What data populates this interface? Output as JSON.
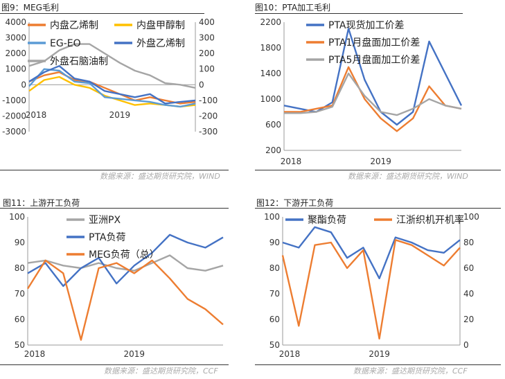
{
  "figures": [
    {
      "label": "图9：MEG毛利",
      "source": "数据来源：盛达期货研究院，WIND"
    },
    {
      "label": "图10：PTA加工毛利",
      "source": "数据来源：盛达期货研究院，WIND"
    },
    {
      "label": "图11：上游开工负荷",
      "source": "数据来源：盛达期货研究院，CCF"
    },
    {
      "label": "图12：下游开工负荷",
      "source": "数据来源：盛达期货研究院，CCF"
    }
  ],
  "chart_data": [
    {
      "type": "line",
      "title": "",
      "x": [
        "2018-01",
        "2018-03",
        "2018-05",
        "2018-07",
        "2018-09",
        "2018-11",
        "2019-01",
        "2019-03",
        "2019-05",
        "2019-07",
        "2019-09",
        "2019-11"
      ],
      "x_ticks": [
        "2018",
        "2019"
      ],
      "y_left": {
        "ticks": [
          -3000,
          -2000,
          -1000,
          0,
          1000,
          2000,
          3000,
          4000
        ],
        "lim": [
          -3000,
          4000
        ]
      },
      "y_right": {
        "ticks": [
          -300,
          -200,
          -100,
          0,
          100,
          200,
          300,
          400
        ],
        "lim": [
          -300,
          400
        ]
      },
      "legend": [
        "内盘乙烯制",
        "内盘甲醇制",
        "EG-EO",
        "外盘乙烯制",
        "外盘石脑油制"
      ],
      "colors": [
        "#ED7D31",
        "#FFC000",
        "#5B9BD5",
        "#4472C4",
        "#A5A5A5"
      ],
      "series": [
        {
          "name": "内盘乙烯制",
          "axis": "left",
          "values": [
            200,
            600,
            800,
            300,
            200,
            -200,
            -600,
            -1000,
            -800,
            -1000,
            -1200,
            -1100
          ]
        },
        {
          "name": "内盘甲醇制",
          "axis": "left",
          "values": [
            -400,
            300,
            500,
            0,
            -200,
            -700,
            -1000,
            -1300,
            -1200,
            -1300,
            -1400,
            -1300
          ]
        },
        {
          "name": "EG-EO",
          "axis": "left",
          "values": [
            -100,
            1000,
            900,
            200,
            100,
            -800,
            -900,
            -1000,
            -1100,
            -1300,
            -1400,
            -1200
          ]
        },
        {
          "name": "外盘乙烯制",
          "axis": "right",
          "values": [
            20,
            80,
            120,
            40,
            20,
            -40,
            -60,
            -80,
            -60,
            -120,
            -110,
            -100
          ]
        },
        {
          "name": "外盘石脑油制",
          "axis": "right",
          "values": [
            120,
            150,
            220,
            260,
            260,
            200,
            140,
            90,
            60,
            10,
            0,
            -20
          ]
        }
      ]
    },
    {
      "type": "line",
      "title": "",
      "x": [
        "2018-01",
        "2018-03",
        "2018-05",
        "2018-07",
        "2018-09",
        "2018-11",
        "2019-01",
        "2019-03",
        "2019-05",
        "2019-07",
        "2019-09",
        "2019-11"
      ],
      "x_ticks": [
        "2018",
        "2019"
      ],
      "y_left": {
        "ticks": [
          200,
          600,
          1000,
          1400,
          1800,
          2200
        ],
        "lim": [
          200,
          2200
        ]
      },
      "legend": [
        "PTA现货加工价差",
        "PTA1月盘面加工价差",
        "PTA5月盘面加工价差"
      ],
      "colors": [
        "#4472C4",
        "#ED7D31",
        "#A5A5A5"
      ],
      "series": [
        {
          "name": "PTA现货加工价差",
          "values": [
            900,
            850,
            800,
            950,
            2100,
            1300,
            800,
            600,
            800,
            1900,
            1400,
            900
          ]
        },
        {
          "name": "PTA1月盘面加工价差",
          "values": [
            800,
            800,
            850,
            900,
            1500,
            1000,
            700,
            500,
            700,
            1200,
            900,
            850
          ]
        },
        {
          "name": "PTA5月盘面加工价差",
          "values": [
            780,
            780,
            800,
            880,
            1400,
            1050,
            800,
            750,
            850,
            1000,
            900,
            850
          ]
        }
      ]
    },
    {
      "type": "line",
      "title": "",
      "x": [
        "2018-01",
        "2018-03",
        "2018-05",
        "2018-07",
        "2018-09",
        "2018-11",
        "2019-01",
        "2019-03",
        "2019-05",
        "2019-07",
        "2019-09",
        "2019-11"
      ],
      "x_ticks": [
        "2018",
        "2019"
      ],
      "y_left": {
        "ticks": [
          50,
          60,
          70,
          80,
          90,
          100
        ],
        "lim": [
          50,
          100
        ]
      },
      "legend": [
        "亚洲PX",
        "PTA负荷",
        "MEG负荷（总）"
      ],
      "colors": [
        "#A5A5A5",
        "#4472C4",
        "#ED7D31"
      ],
      "series": [
        {
          "name": "亚洲PX",
          "values": [
            82,
            83,
            81,
            80,
            82,
            80,
            79,
            82,
            85,
            80,
            79,
            81
          ]
        },
        {
          "name": "PTA负荷",
          "values": [
            78,
            82,
            73,
            80,
            84,
            74,
            81,
            86,
            93,
            90,
            88,
            92
          ]
        },
        {
          "name": "MEG负荷（总）",
          "values": [
            72,
            83,
            78,
            52,
            80,
            82,
            78,
            83,
            76,
            68,
            64,
            58
          ]
        }
      ]
    },
    {
      "type": "line",
      "title": "",
      "x": [
        "2018-01",
        "2018-03",
        "2018-05",
        "2018-07",
        "2018-09",
        "2018-11",
        "2019-01",
        "2019-03",
        "2019-05",
        "2019-07",
        "2019-09",
        "2019-11"
      ],
      "x_ticks": [
        "2018",
        "2019"
      ],
      "y_left": {
        "ticks": [
          50,
          60,
          70,
          80,
          90,
          100
        ],
        "lim": [
          50,
          100
        ]
      },
      "y_right": {
        "ticks": [
          0,
          20,
          40,
          60,
          80,
          100
        ],
        "lim": [
          0,
          100
        ]
      },
      "legend": [
        "聚酯负荷",
        "江浙织机开机率"
      ],
      "colors": [
        "#4472C4",
        "#ED7D31"
      ],
      "series": [
        {
          "name": "聚酯负荷",
          "axis": "left",
          "values": [
            90,
            88,
            96,
            94,
            84,
            88,
            76,
            92,
            90,
            87,
            86,
            91
          ]
        },
        {
          "name": "江浙织机开机率",
          "axis": "right",
          "values": [
            70,
            15,
            78,
            80,
            60,
            74,
            5,
            82,
            78,
            70,
            62,
            76
          ]
        }
      ]
    }
  ]
}
